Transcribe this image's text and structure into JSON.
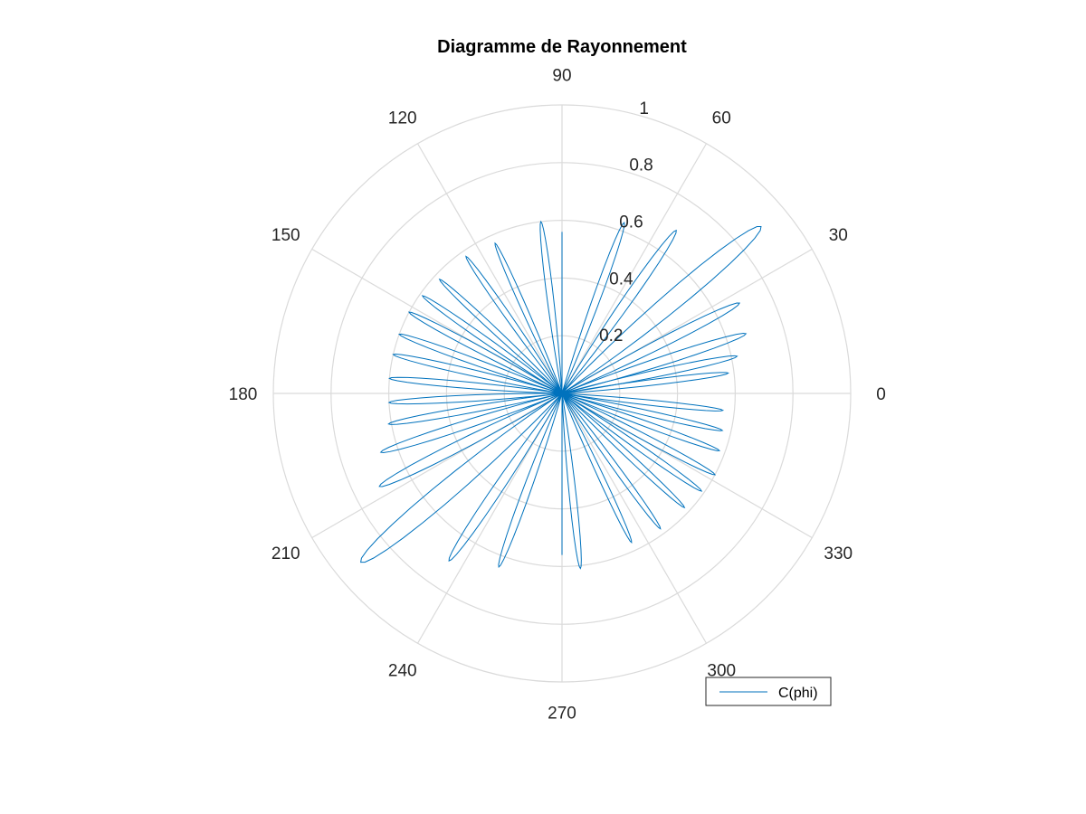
{
  "chart_data": {
    "type": "line",
    "subtype": "polar",
    "title": "Diagramme de Rayonnement",
    "theta_unit": "degrees",
    "theta_ticks": [
      0,
      30,
      60,
      90,
      120,
      150,
      180,
      210,
      240,
      270,
      300,
      330
    ],
    "theta_tick_labels": [
      "0",
      "30",
      "60",
      "90",
      "120",
      "150",
      "180",
      "210",
      "240",
      "270",
      "300",
      "330"
    ],
    "r_ticks": [
      0.2,
      0.4,
      0.6,
      0.8,
      1
    ],
    "r_tick_labels": [
      "0.2",
      "0.4",
      "0.6",
      "0.8",
      "1"
    ],
    "rlim": [
      0,
      1
    ],
    "grid": true,
    "legend": {
      "position": "bottom-right",
      "entries": [
        "C(phi)"
      ]
    },
    "series": [
      {
        "name": "C(phi)",
        "color": "#0072bd",
        "lobes": [
          {
            "theta": 7,
            "r": 0.58
          },
          {
            "theta": 12,
            "r": 0.62
          },
          {
            "theta": 18,
            "r": 0.67
          },
          {
            "theta": 27,
            "r": 0.69
          },
          {
            "theta": 40,
            "r": 0.9
          },
          {
            "theta": 55,
            "r": 0.69
          },
          {
            "theta": 70,
            "r": 0.63
          },
          {
            "theta": 97,
            "r": 0.6
          },
          {
            "theta": 114,
            "r": 0.57
          },
          {
            "theta": 125,
            "r": 0.58
          },
          {
            "theta": 137,
            "r": 0.58
          },
          {
            "theta": 145,
            "r": 0.59
          },
          {
            "theta": 152,
            "r": 0.6
          },
          {
            "theta": 160,
            "r": 0.6
          },
          {
            "theta": 167,
            "r": 0.6
          },
          {
            "theta": 175,
            "r": 0.6
          },
          {
            "theta": 183,
            "r": 0.6
          },
          {
            "theta": 190,
            "r": 0.61
          },
          {
            "theta": 198,
            "r": 0.66
          },
          {
            "theta": 207,
            "r": 0.71
          },
          {
            "theta": 220,
            "r": 0.91
          },
          {
            "theta": 236,
            "r": 0.7
          },
          {
            "theta": 250,
            "r": 0.64
          },
          {
            "theta": 276,
            "r": 0.61
          },
          {
            "theta": 295,
            "r": 0.57
          },
          {
            "theta": 306,
            "r": 0.58
          },
          {
            "theta": 317,
            "r": 0.58
          },
          {
            "theta": 325,
            "r": 0.59
          },
          {
            "theta": 332,
            "r": 0.6
          },
          {
            "theta": 340,
            "r": 0.58
          },
          {
            "theta": 347,
            "r": 0.57
          },
          {
            "theta": 354,
            "r": 0.56
          }
        ]
      }
    ]
  }
}
